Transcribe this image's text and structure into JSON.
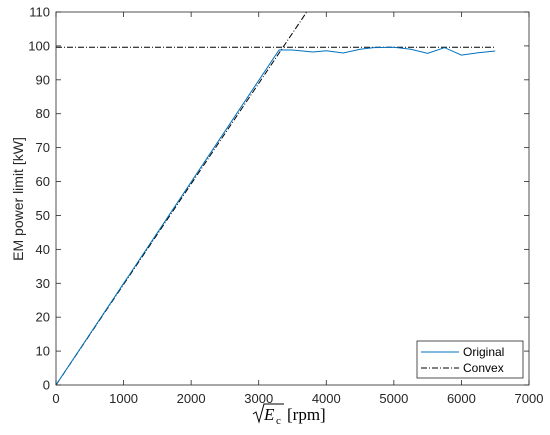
{
  "chart_data": {
    "type": "line",
    "xlabel": {
      "symbol": "E",
      "subscript": "c",
      "unit": "[rpm]"
    },
    "ylabel": "EM power limit [kW]",
    "xlim": [
      0,
      7000
    ],
    "ylim": [
      0,
      110
    ],
    "xticks": [
      0,
      1000,
      2000,
      3000,
      4000,
      5000,
      6000,
      7000
    ],
    "yticks": [
      0,
      10,
      20,
      30,
      40,
      50,
      60,
      70,
      80,
      90,
      100,
      110
    ],
    "grid": false,
    "legend_position": "bottom-right",
    "series": [
      {
        "name": "Original",
        "color": "#0072BD",
        "style": "solid",
        "x": [
          0,
          3300,
          3500,
          3800,
          4000,
          4250,
          4500,
          4700,
          5000,
          5250,
          5500,
          5750,
          6000,
          6250,
          6500
        ],
        "y": [
          0,
          98.8,
          98.8,
          98.2,
          98.6,
          97.9,
          99.0,
          99.5,
          99.6,
          99.0,
          97.8,
          99.5,
          97.3,
          98.0,
          98.5
        ]
      },
      {
        "name": "Convex",
        "color": "#000000",
        "style": "dashdot",
        "x": [
          0,
          3710
        ],
        "y": [
          0,
          110
        ],
        "y2_const": 99.6,
        "x2_range": [
          0,
          6500
        ]
      }
    ]
  }
}
